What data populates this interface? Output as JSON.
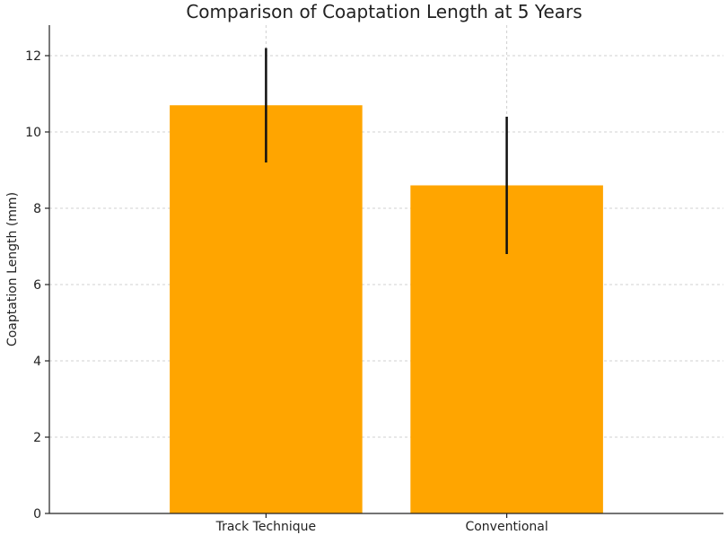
{
  "chart_data": {
    "type": "bar",
    "title": "Comparison of Coaptation Length at 5 Years",
    "xlabel": "",
    "ylabel": "Coaptation Length (mm)",
    "categories": [
      "Track Technique",
      "Conventional"
    ],
    "values": [
      10.7,
      8.6
    ],
    "error": [
      1.5,
      1.8
    ],
    "ylim": [
      0,
      12.8
    ],
    "yticks": [
      0,
      2,
      4,
      6,
      8,
      10,
      12
    ],
    "bar_color": "#ffa500",
    "error_color": "#111111",
    "grid": true
  }
}
